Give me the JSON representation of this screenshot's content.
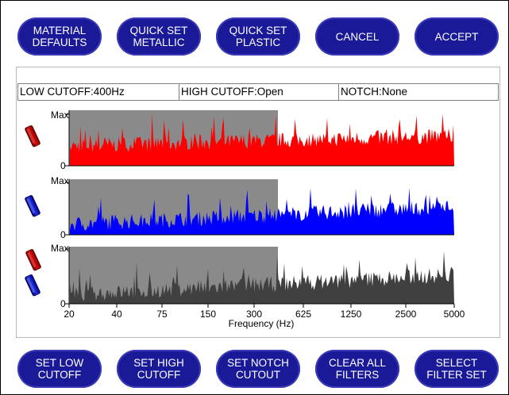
{
  "top_buttons": [
    {
      "label": "MATERIAL\nDEFAULTS"
    },
    {
      "label": "QUICK SET\nMETALLIC"
    },
    {
      "label": "QUICK SET\nPLASTIC"
    },
    {
      "label": "CANCEL"
    },
    {
      "label": "ACCEPT"
    }
  ],
  "filters": {
    "low": "LOW CUTOFF:400Hz",
    "high": "HIGH CUTOFF:Open",
    "notch": "NOTCH:None"
  },
  "graphs": {
    "y_max": "Max",
    "y_min": "0",
    "colors": {
      "red": "#ff0000",
      "blue": "#0000ff",
      "combined": "#404040",
      "shade": "#8a8a8a"
    }
  },
  "chart_data": {
    "type": "area",
    "x_scale": "log",
    "x_ticks": [
      "20",
      "40",
      "75",
      "150",
      "300",
      "625",
      "1250",
      "2500",
      "5000"
    ],
    "xlabel": "Frequency (Hz)",
    "low_cutoff_hz": 400,
    "series": [
      {
        "id": "red",
        "color": "#ff0000"
      },
      {
        "id": "blue",
        "color": "#0000ff"
      },
      {
        "id": "combined",
        "color": "#404040"
      }
    ]
  },
  "bottom_buttons": [
    {
      "label": "SET LOW\nCUTOFF"
    },
    {
      "label": "SET HIGH\nCUTOFF"
    },
    {
      "label": "SET NOTCH\nCUTOUT"
    },
    {
      "label": "CLEAR ALL\nFILTERS"
    },
    {
      "label": "SELECT\nFILTER SET"
    }
  ]
}
